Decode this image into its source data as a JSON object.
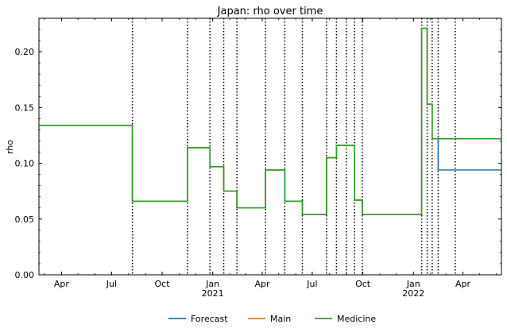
{
  "chart_data": {
    "type": "line",
    "title": "Japan: rho over time",
    "xlabel": "",
    "ylabel": "rho",
    "x_range": [
      "2020-02-20",
      "2022-06-10"
    ],
    "ylim": [
      0,
      0.23
    ],
    "y_ticks": [
      0.0,
      0.05,
      0.1,
      0.15,
      0.2
    ],
    "y_tick_labels": [
      "0.00",
      "0.05",
      "0.10",
      "0.15",
      "0.20"
    ],
    "x_ticks": [
      {
        "date": "2020-04-01",
        "label": "Apr",
        "sublabel": ""
      },
      {
        "date": "2020-07-01",
        "label": "Jul",
        "sublabel": ""
      },
      {
        "date": "2020-10-01",
        "label": "Oct",
        "sublabel": ""
      },
      {
        "date": "2021-01-01",
        "label": "Jan",
        "sublabel": "2021"
      },
      {
        "date": "2021-04-01",
        "label": "Apr",
        "sublabel": ""
      },
      {
        "date": "2021-07-01",
        "label": "Jul",
        "sublabel": ""
      },
      {
        "date": "2021-10-01",
        "label": "Oct",
        "sublabel": ""
      },
      {
        "date": "2022-01-01",
        "label": "Jan",
        "sublabel": "2022"
      },
      {
        "date": "2022-04-01",
        "label": "Apr",
        "sublabel": ""
      }
    ],
    "grid": false,
    "legend": {
      "placement": "bottom-center"
    },
    "change_points": [
      "2020-08-08",
      "2020-11-16",
      "2020-12-27",
      "2021-01-21",
      "2021-02-14",
      "2021-04-07",
      "2021-05-12",
      "2021-06-13",
      "2021-07-27",
      "2021-08-14",
      "2021-09-01",
      "2021-09-16",
      "2021-09-30",
      "2022-01-16",
      "2022-01-26",
      "2022-02-04",
      "2022-02-15",
      "2022-03-18"
    ],
    "series": [
      {
        "name": "Forecast",
        "color": "#1f77b4",
        "steps": [
          [
            "2020-02-20",
            0.134
          ],
          [
            "2020-08-08",
            0.066
          ],
          [
            "2020-11-16",
            0.114
          ],
          [
            "2020-12-27",
            0.097
          ],
          [
            "2021-01-21",
            0.075
          ],
          [
            "2021-02-14",
            0.06
          ],
          [
            "2021-04-07",
            0.094
          ],
          [
            "2021-05-12",
            0.066
          ],
          [
            "2021-06-13",
            0.054
          ],
          [
            "2021-07-27",
            0.105
          ],
          [
            "2021-08-14",
            0.116
          ],
          [
            "2021-09-16",
            0.067
          ],
          [
            "2021-09-30",
            0.054
          ],
          [
            "2022-01-16",
            0.221
          ],
          [
            "2022-01-26",
            0.153
          ],
          [
            "2022-02-04",
            0.122
          ],
          [
            "2022-02-15",
            0.094
          ],
          [
            "2022-06-10",
            0.094
          ]
        ]
      },
      {
        "name": "Main",
        "color": "#ff7f0e",
        "steps": [
          [
            "2020-02-20",
            0.134
          ],
          [
            "2020-08-08",
            0.066
          ],
          [
            "2020-11-16",
            0.114
          ],
          [
            "2020-12-27",
            0.097
          ],
          [
            "2021-01-21",
            0.075
          ],
          [
            "2021-02-14",
            0.06
          ],
          [
            "2021-04-07",
            0.094
          ],
          [
            "2021-05-12",
            0.066
          ],
          [
            "2021-06-13",
            0.054
          ],
          [
            "2021-07-27",
            0.105
          ],
          [
            "2021-08-14",
            0.116
          ],
          [
            "2021-09-16",
            0.067
          ],
          [
            "2021-09-30",
            0.054
          ],
          [
            "2022-01-16",
            0.221
          ],
          [
            "2022-01-26",
            0.153
          ],
          [
            "2022-02-04",
            0.122
          ],
          [
            "2022-06-10",
            0.122
          ]
        ]
      },
      {
        "name": "Medicine",
        "color": "#2ca02c",
        "steps": [
          [
            "2020-02-20",
            0.134
          ],
          [
            "2020-08-08",
            0.066
          ],
          [
            "2020-11-16",
            0.114
          ],
          [
            "2020-12-27",
            0.097
          ],
          [
            "2021-01-21",
            0.075
          ],
          [
            "2021-02-14",
            0.06
          ],
          [
            "2021-04-07",
            0.094
          ],
          [
            "2021-05-12",
            0.066
          ],
          [
            "2021-06-13",
            0.054
          ],
          [
            "2021-07-27",
            0.105
          ],
          [
            "2021-08-14",
            0.116
          ],
          [
            "2021-09-16",
            0.067
          ],
          [
            "2021-09-30",
            0.054
          ],
          [
            "2022-01-16",
            0.221
          ],
          [
            "2022-01-26",
            0.153
          ],
          [
            "2022-02-04",
            0.122
          ],
          [
            "2022-06-10",
            0.122
          ]
        ]
      }
    ]
  }
}
